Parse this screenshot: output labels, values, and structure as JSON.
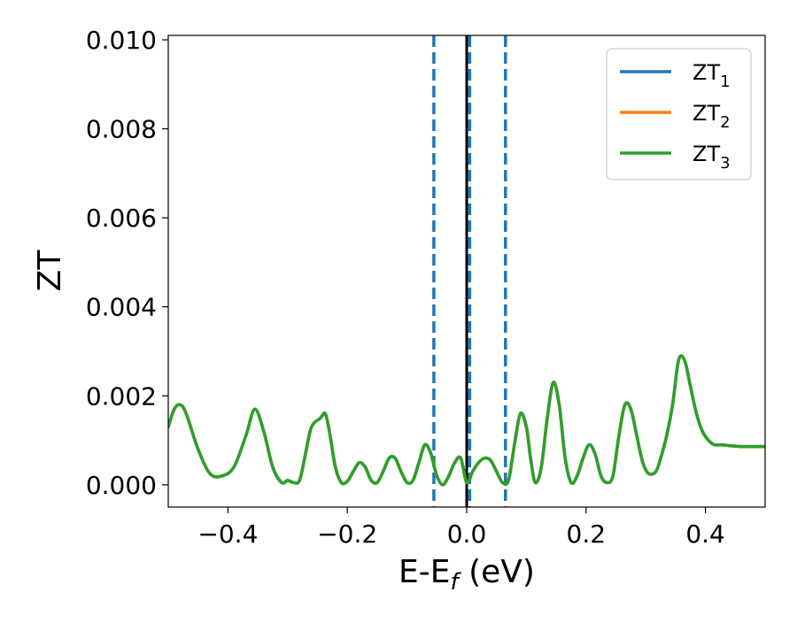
{
  "chart_data": {
    "type": "line",
    "title": "",
    "xlabel": "E-E",
    "xlabel_sub": "f",
    "xlabel_unit": " (eV)",
    "ylabel": "ZT",
    "xlim": [
      -0.5,
      0.5
    ],
    "ylim": [
      -0.0005,
      0.0101
    ],
    "x_ticks": [
      -0.4,
      -0.2,
      0.0,
      0.2,
      0.4
    ],
    "x_tick_labels": [
      "−0.4",
      "−0.2",
      "0.0",
      "0.2",
      "0.4"
    ],
    "y_ticks": [
      0.0,
      0.002,
      0.004,
      0.006,
      0.008,
      0.01
    ],
    "y_tick_labels": [
      "0.000",
      "0.002",
      "0.004",
      "0.006",
      "0.008",
      "0.010"
    ],
    "grid": false,
    "legend_position": "top-right",
    "vertical_lines": [
      {
        "x": -0.055,
        "style": "dashed",
        "color": "#1f77b4"
      },
      {
        "x": 0.0,
        "style": "solid",
        "color": "#000000"
      },
      {
        "x": 0.005,
        "style": "dashed",
        "color": "#1f77b4"
      },
      {
        "x": 0.065,
        "style": "dashed",
        "color": "#1f77b4"
      }
    ],
    "series": [
      {
        "name": "ZT",
        "name_sub": "1",
        "color": "#1f77b4",
        "x": [
          -0.5,
          -0.49,
          -0.48,
          -0.47,
          -0.45,
          -0.43,
          -0.41,
          -0.39,
          -0.37,
          -0.355,
          -0.34,
          -0.325,
          -0.31,
          -0.3,
          -0.29,
          -0.28,
          -0.27,
          -0.26,
          -0.245,
          -0.237,
          -0.23,
          -0.22,
          -0.21,
          -0.2,
          -0.19,
          -0.18,
          -0.17,
          -0.16,
          -0.15,
          -0.14,
          -0.13,
          -0.12,
          -0.11,
          -0.1,
          -0.09,
          -0.08,
          -0.07,
          -0.06,
          -0.05,
          -0.04,
          -0.03,
          -0.02,
          -0.01,
          0.0,
          0.01,
          0.02,
          0.03,
          0.04,
          0.05,
          0.06,
          0.07,
          0.08,
          0.09,
          0.1,
          0.107,
          0.115,
          0.125,
          0.135,
          0.145,
          0.155,
          0.165,
          0.175,
          0.185,
          0.195,
          0.205,
          0.215,
          0.225,
          0.235,
          0.245,
          0.255,
          0.265,
          0.275,
          0.285,
          0.295,
          0.305,
          0.317,
          0.325,
          0.335,
          0.345,
          0.355,
          0.365,
          0.375,
          0.385,
          0.395,
          0.405,
          0.415,
          0.428,
          0.44,
          0.45,
          0.46,
          0.47,
          0.48,
          0.49,
          0.5
        ],
        "y": [
          0.0013,
          0.0017,
          0.0018,
          0.0016,
          0.0008,
          0.00025,
          0.0002,
          0.0004,
          0.0011,
          0.0017,
          0.0012,
          0.0004,
          5e-05,
          0.0001,
          5e-05,
          0.0001,
          0.0007,
          0.0013,
          0.0015,
          0.0016,
          0.0012,
          0.0004,
          5e-05,
          8e-05,
          0.0003,
          0.0005,
          0.0004,
          0.0001,
          5e-05,
          0.0003,
          0.0006,
          0.0006,
          0.0003,
          5e-05,
          0.0001,
          0.0005,
          0.0009,
          0.0007,
          0.0002,
          0.0,
          0.0002,
          0.0005,
          0.0006,
          5e-05,
          0.0003,
          0.0005,
          0.0006,
          0.00055,
          0.0003,
          5e-05,
          0.0001,
          0.0009,
          0.0016,
          0.0013,
          0.0006,
          5e-05,
          0.0004,
          0.0015,
          0.0023,
          0.0018,
          0.0006,
          5e-05,
          0.0002,
          0.0006,
          0.0009,
          0.0007,
          0.0002,
          5e-05,
          0.0002,
          0.0011,
          0.0018,
          0.0017,
          0.0011,
          0.0005,
          0.00025,
          0.0003,
          0.0006,
          0.0011,
          0.0018,
          0.0028,
          0.0028,
          0.0022,
          0.0016,
          0.0012,
          0.001,
          0.0009,
          0.0009,
          0.00088,
          0.00087,
          0.00086,
          0.00086,
          0.00086,
          0.00086,
          0.00086
        ]
      },
      {
        "name": "ZT",
        "name_sub": "2",
        "color": "#ff7f0e",
        "x": [
          -0.5,
          -0.49,
          -0.48,
          -0.47,
          -0.45,
          -0.43,
          -0.41,
          -0.39,
          -0.37,
          -0.355,
          -0.34,
          -0.325,
          -0.31,
          -0.3,
          -0.29,
          -0.28,
          -0.27,
          -0.26,
          -0.245,
          -0.237,
          -0.23,
          -0.22,
          -0.21,
          -0.2,
          -0.19,
          -0.18,
          -0.17,
          -0.16,
          -0.15,
          -0.14,
          -0.13,
          -0.12,
          -0.11,
          -0.1,
          -0.09,
          -0.08,
          -0.07,
          -0.06,
          -0.05,
          -0.04,
          -0.03,
          -0.02,
          -0.01,
          0.0,
          0.01,
          0.02,
          0.03,
          0.04,
          0.05,
          0.06,
          0.07,
          0.08,
          0.09,
          0.1,
          0.107,
          0.115,
          0.125,
          0.135,
          0.145,
          0.155,
          0.165,
          0.175,
          0.185,
          0.195,
          0.205,
          0.215,
          0.225,
          0.235,
          0.245,
          0.255,
          0.265,
          0.275,
          0.285,
          0.295,
          0.305,
          0.317,
          0.325,
          0.335,
          0.345,
          0.355,
          0.365,
          0.375,
          0.385,
          0.395,
          0.405,
          0.415,
          0.428,
          0.44,
          0.45,
          0.46,
          0.47,
          0.48,
          0.49,
          0.5
        ],
        "y": [
          0.0013,
          0.0017,
          0.0018,
          0.0016,
          0.0008,
          0.00025,
          0.0002,
          0.0004,
          0.0011,
          0.0017,
          0.0012,
          0.0004,
          5e-05,
          0.0001,
          5e-05,
          0.0001,
          0.0007,
          0.0013,
          0.0015,
          0.0016,
          0.0012,
          0.0004,
          5e-05,
          8e-05,
          0.0003,
          0.0005,
          0.0004,
          0.0001,
          5e-05,
          0.0003,
          0.0006,
          0.0006,
          0.0003,
          5e-05,
          0.0001,
          0.0005,
          0.0009,
          0.0007,
          0.0002,
          0.0,
          0.0002,
          0.0005,
          0.0006,
          5e-05,
          0.0003,
          0.0005,
          0.0006,
          0.00055,
          0.0003,
          5e-05,
          0.0001,
          0.0009,
          0.0016,
          0.0013,
          0.0006,
          5e-05,
          0.0004,
          0.0015,
          0.0023,
          0.0018,
          0.0006,
          5e-05,
          0.0002,
          0.0006,
          0.0009,
          0.0007,
          0.0002,
          5e-05,
          0.0002,
          0.0011,
          0.0018,
          0.0017,
          0.0011,
          0.0005,
          0.00025,
          0.0003,
          0.0006,
          0.0011,
          0.0018,
          0.0028,
          0.0028,
          0.0022,
          0.0016,
          0.0012,
          0.001,
          0.0009,
          0.0009,
          0.00088,
          0.00087,
          0.00086,
          0.00086,
          0.00086,
          0.00086,
          0.00086
        ]
      },
      {
        "name": "ZT",
        "name_sub": "3",
        "color": "#2ca02c",
        "x": [
          -0.5,
          -0.49,
          -0.48,
          -0.47,
          -0.45,
          -0.43,
          -0.41,
          -0.39,
          -0.37,
          -0.355,
          -0.34,
          -0.325,
          -0.31,
          -0.3,
          -0.29,
          -0.28,
          -0.27,
          -0.26,
          -0.245,
          -0.237,
          -0.23,
          -0.22,
          -0.21,
          -0.2,
          -0.19,
          -0.18,
          -0.17,
          -0.16,
          -0.15,
          -0.14,
          -0.13,
          -0.12,
          -0.11,
          -0.1,
          -0.09,
          -0.08,
          -0.07,
          -0.06,
          -0.05,
          -0.04,
          -0.03,
          -0.02,
          -0.01,
          0.0,
          0.01,
          0.02,
          0.03,
          0.04,
          0.05,
          0.06,
          0.07,
          0.08,
          0.09,
          0.1,
          0.107,
          0.115,
          0.125,
          0.135,
          0.145,
          0.155,
          0.165,
          0.175,
          0.185,
          0.195,
          0.205,
          0.215,
          0.225,
          0.235,
          0.245,
          0.255,
          0.265,
          0.275,
          0.285,
          0.295,
          0.305,
          0.317,
          0.325,
          0.335,
          0.345,
          0.355,
          0.365,
          0.375,
          0.385,
          0.395,
          0.405,
          0.415,
          0.428,
          0.44,
          0.45,
          0.46,
          0.47,
          0.48,
          0.49,
          0.5
        ],
        "y": [
          0.0013,
          0.0017,
          0.0018,
          0.0016,
          0.0008,
          0.00025,
          0.0002,
          0.0004,
          0.0011,
          0.0017,
          0.0012,
          0.0004,
          5e-05,
          0.0001,
          5e-05,
          0.0001,
          0.0007,
          0.0013,
          0.0015,
          0.0016,
          0.0012,
          0.0004,
          5e-05,
          8e-05,
          0.0003,
          0.0005,
          0.0004,
          0.0001,
          5e-05,
          0.0003,
          0.0006,
          0.0006,
          0.0003,
          5e-05,
          0.0001,
          0.0005,
          0.0009,
          0.0007,
          0.0002,
          0.0,
          0.0002,
          0.0005,
          0.0006,
          5e-05,
          0.0003,
          0.0005,
          0.0006,
          0.00055,
          0.0003,
          5e-05,
          0.0001,
          0.0009,
          0.0016,
          0.0013,
          0.0006,
          5e-05,
          0.0004,
          0.0015,
          0.0023,
          0.0018,
          0.0006,
          5e-05,
          0.0002,
          0.0006,
          0.0009,
          0.0007,
          0.0002,
          5e-05,
          0.0002,
          0.0011,
          0.0018,
          0.0017,
          0.0011,
          0.0005,
          0.00025,
          0.0003,
          0.0006,
          0.0011,
          0.0018,
          0.0028,
          0.0028,
          0.0022,
          0.0016,
          0.0012,
          0.001,
          0.0009,
          0.0009,
          0.00088,
          0.00087,
          0.00086,
          0.00086,
          0.00086,
          0.00086,
          0.00086
        ]
      }
    ]
  }
}
